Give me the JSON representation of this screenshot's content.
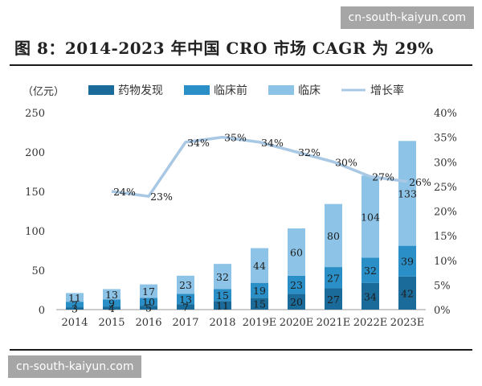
{
  "watermark": "cn-south-kaiyun.com",
  "title": "图 8：2014-2023 年中国 CRO 市场 CAGR 为 29%",
  "chart_data": {
    "type": "bar",
    "categories": [
      "2014",
      "2015",
      "2016",
      "2017",
      "2018",
      "2019E",
      "2020E",
      "2021E",
      "2022E",
      "2023E"
    ],
    "y_unit_label": "（亿元）",
    "ylim": [
      0,
      250
    ],
    "yticks": [
      "0",
      "50",
      "100",
      "150",
      "200",
      "250"
    ],
    "y2lim": [
      0,
      40
    ],
    "y2ticks": [
      "0%",
      "5%",
      "10%",
      "15%",
      "20%",
      "25%",
      "30%",
      "35%",
      "40%"
    ],
    "legend_position": "top",
    "series": [
      {
        "name": "药物发现",
        "kind": "bar-stacked",
        "color": "#1a6b9a",
        "values": [
          3,
          4,
          5,
          7,
          11,
          15,
          20,
          27,
          34,
          42
        ],
        "labels": [
          "3",
          "4",
          "5",
          "7",
          "11",
          "15",
          "20",
          "27",
          "34",
          "42"
        ]
      },
      {
        "name": "临床前",
        "kind": "bar-stacked",
        "color": "#2a8fc7",
        "values": [
          7,
          9,
          10,
          13,
          15,
          19,
          23,
          27,
          32,
          39
        ],
        "labels": [
          "7",
          "9",
          "10",
          "13",
          "15",
          "19",
          "23",
          "27",
          "32",
          "39"
        ]
      },
      {
        "name": "临床",
        "kind": "bar-stacked",
        "color": "#8dc3e6",
        "values": [
          11,
          13,
          17,
          23,
          32,
          44,
          60,
          80,
          104,
          133
        ],
        "labels": [
          "11",
          "13",
          "17",
          "23",
          "32",
          "44",
          "60",
          "80",
          "104",
          "133"
        ]
      },
      {
        "name": "增长率",
        "kind": "line",
        "axis": "right",
        "color": "#a9c8e4",
        "values": [
          null,
          24,
          23,
          34,
          35,
          34,
          32,
          30,
          27,
          26
        ],
        "labels": [
          "",
          "24%",
          "23%",
          "34%",
          "35%",
          "34%",
          "32%",
          "30%",
          "27%",
          "26%"
        ]
      }
    ]
  }
}
